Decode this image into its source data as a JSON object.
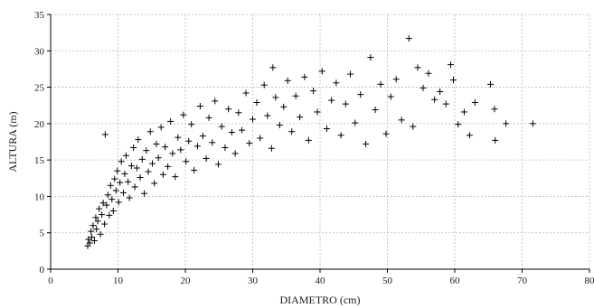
{
  "chart_data": {
    "type": "scatter",
    "xlabel": "DIAMETRO (cm)",
    "ylabel": "ALTURA (m)",
    "xlim": [
      0,
      80
    ],
    "ylim": [
      0,
      35
    ],
    "xticks": [
      0,
      10,
      20,
      30,
      40,
      50,
      60,
      70,
      80
    ],
    "yticks": [
      0,
      5,
      10,
      15,
      20,
      25,
      30,
      35
    ],
    "grid": true,
    "marker": "plus",
    "marker_color": "#000000",
    "series": [
      {
        "points": [
          [
            5.5,
            3.2
          ],
          [
            5.6,
            4.1
          ],
          [
            5.8,
            3.6
          ],
          [
            6.0,
            5.2
          ],
          [
            6.1,
            4.4
          ],
          [
            6.3,
            6.0
          ],
          [
            6.5,
            3.9
          ],
          [
            6.7,
            7.1
          ],
          [
            6.8,
            5.5
          ],
          [
            7.0,
            6.6
          ],
          [
            7.2,
            8.3
          ],
          [
            7.4,
            4.8
          ],
          [
            7.6,
            7.5
          ],
          [
            7.8,
            9.1
          ],
          [
            8.0,
            6.2
          ],
          [
            8.1,
            18.5
          ],
          [
            8.3,
            8.8
          ],
          [
            8.5,
            10.2
          ],
          [
            8.7,
            7.4
          ],
          [
            8.9,
            11.5
          ],
          [
            9.1,
            9.6
          ],
          [
            9.3,
            8.0
          ],
          [
            9.5,
            12.4
          ],
          [
            9.7,
            10.8
          ],
          [
            9.9,
            13.5
          ],
          [
            10.1,
            9.2
          ],
          [
            10.3,
            11.9
          ],
          [
            10.5,
            14.8
          ],
          [
            10.8,
            10.5
          ],
          [
            11.0,
            13.1
          ],
          [
            11.2,
            15.6
          ],
          [
            11.5,
            12.0
          ],
          [
            11.7,
            9.8
          ],
          [
            12.0,
            14.2
          ],
          [
            12.3,
            16.7
          ],
          [
            12.5,
            11.3
          ],
          [
            12.8,
            13.9
          ],
          [
            13.0,
            17.8
          ],
          [
            13.3,
            12.6
          ],
          [
            13.6,
            15.1
          ],
          [
            13.9,
            10.4
          ],
          [
            14.2,
            16.3
          ],
          [
            14.5,
            13.4
          ],
          [
            14.8,
            18.9
          ],
          [
            15.1,
            14.5
          ],
          [
            15.4,
            11.8
          ],
          [
            15.7,
            17.2
          ],
          [
            16.0,
            15.3
          ],
          [
            16.4,
            19.5
          ],
          [
            16.7,
            13.0
          ],
          [
            17.0,
            16.8
          ],
          [
            17.4,
            14.1
          ],
          [
            17.8,
            20.3
          ],
          [
            18.1,
            15.9
          ],
          [
            18.5,
            12.7
          ],
          [
            18.9,
            18.1
          ],
          [
            19.3,
            16.4
          ],
          [
            19.7,
            21.2
          ],
          [
            20.1,
            14.8
          ],
          [
            20.5,
            17.6
          ],
          [
            20.9,
            19.9
          ],
          [
            21.3,
            13.6
          ],
          [
            21.8,
            16.9
          ],
          [
            22.2,
            22.4
          ],
          [
            22.6,
            18.3
          ],
          [
            23.1,
            15.2
          ],
          [
            23.5,
            20.8
          ],
          [
            24.0,
            17.4
          ],
          [
            24.4,
            23.1
          ],
          [
            24.9,
            14.4
          ],
          [
            25.4,
            19.6
          ],
          [
            25.9,
            16.7
          ],
          [
            26.4,
            22.0
          ],
          [
            26.9,
            18.8
          ],
          [
            27.4,
            15.9
          ],
          [
            27.9,
            21.5
          ],
          [
            28.4,
            19.1
          ],
          [
            29.0,
            24.2
          ],
          [
            29.5,
            17.3
          ],
          [
            30.0,
            20.6
          ],
          [
            30.6,
            22.9
          ],
          [
            31.1,
            18.0
          ],
          [
            31.7,
            25.3
          ],
          [
            32.2,
            21.1
          ],
          [
            32.8,
            16.6
          ],
          [
            33.0,
            27.7
          ],
          [
            33.4,
            23.6
          ],
          [
            34.0,
            19.8
          ],
          [
            34.6,
            22.3
          ],
          [
            35.2,
            25.9
          ],
          [
            35.8,
            18.9
          ],
          [
            36.4,
            23.8
          ],
          [
            37.0,
            20.9
          ],
          [
            37.7,
            26.4
          ],
          [
            38.3,
            17.7
          ],
          [
            39.0,
            24.5
          ],
          [
            39.6,
            21.6
          ],
          [
            40.3,
            27.2
          ],
          [
            41.0,
            19.3
          ],
          [
            41.7,
            23.2
          ],
          [
            42.4,
            25.6
          ],
          [
            43.1,
            18.4
          ],
          [
            43.8,
            22.7
          ],
          [
            44.5,
            26.8
          ],
          [
            45.2,
            20.1
          ],
          [
            46.0,
            24.0
          ],
          [
            46.8,
            17.2
          ],
          [
            47.5,
            29.1
          ],
          [
            48.2,
            21.9
          ],
          [
            49.0,
            25.4
          ],
          [
            49.8,
            18.6
          ],
          [
            50.5,
            23.7
          ],
          [
            51.3,
            26.1
          ],
          [
            52.1,
            20.5
          ],
          [
            53.2,
            31.7
          ],
          [
            53.8,
            19.6
          ],
          [
            54.5,
            27.7
          ],
          [
            55.3,
            24.9
          ],
          [
            56.1,
            26.9
          ],
          [
            57.0,
            23.3
          ],
          [
            57.8,
            24.4
          ],
          [
            58.7,
            22.7
          ],
          [
            59.4,
            28.1
          ],
          [
            59.8,
            26.0
          ],
          [
            60.5,
            19.9
          ],
          [
            61.4,
            21.6
          ],
          [
            62.2,
            18.4
          ],
          [
            63.0,
            22.9
          ],
          [
            65.3,
            25.4
          ],
          [
            65.9,
            22.0
          ],
          [
            66.0,
            17.7
          ],
          [
            67.6,
            20.0
          ],
          [
            71.6,
            20.0
          ]
        ]
      }
    ]
  }
}
